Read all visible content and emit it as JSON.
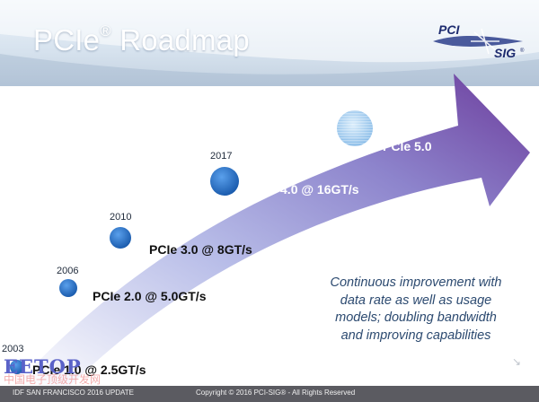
{
  "slide": {
    "title_main": "PCIe",
    "title_reg": "®",
    "title_rest": " Roadmap",
    "logo_text_top": "PCI",
    "logo_text_bottom": "SIG",
    "logo_reg": "®"
  },
  "milestones": [
    {
      "year": "2003",
      "label": "PCIe 1.0 @ 2.5GT/s"
    },
    {
      "year": "2006",
      "label": "PCIe 2.0 @ 5.0GT/s"
    },
    {
      "year": "2010",
      "label": "PCIe 3.0 @ 8GT/s"
    },
    {
      "year": "2017",
      "label": "PCIe 4.0 @ 16GT/s"
    },
    {
      "year": "",
      "label": "PCIe 5.0"
    }
  ],
  "callout": "Continuous improvement with\ndata rate as well as usage\nmodels; doubling bandwidth\nand improving capabilities",
  "watermark": {
    "line1": "EETOP",
    "line2": "中国电子顶级开发网"
  },
  "footer": {
    "left": "IDF SAN FRANCISCO 2016 UPDATE",
    "center": "Copyright © 2016 PCI-SIG® - All Rights Reserved"
  },
  "colors": {
    "arrow_start": "#ffffff",
    "arrow_mid": "#9fa6dd",
    "arrow_end": "#6c3c9c",
    "node_blue": "#2a6fc0",
    "callout_text": "#2c4a70",
    "footer_bg": "#5b5b61"
  },
  "icons": [
    "pci-sig-logo-icon",
    "milestone-dot-icon",
    "next-arrow-icon"
  ]
}
